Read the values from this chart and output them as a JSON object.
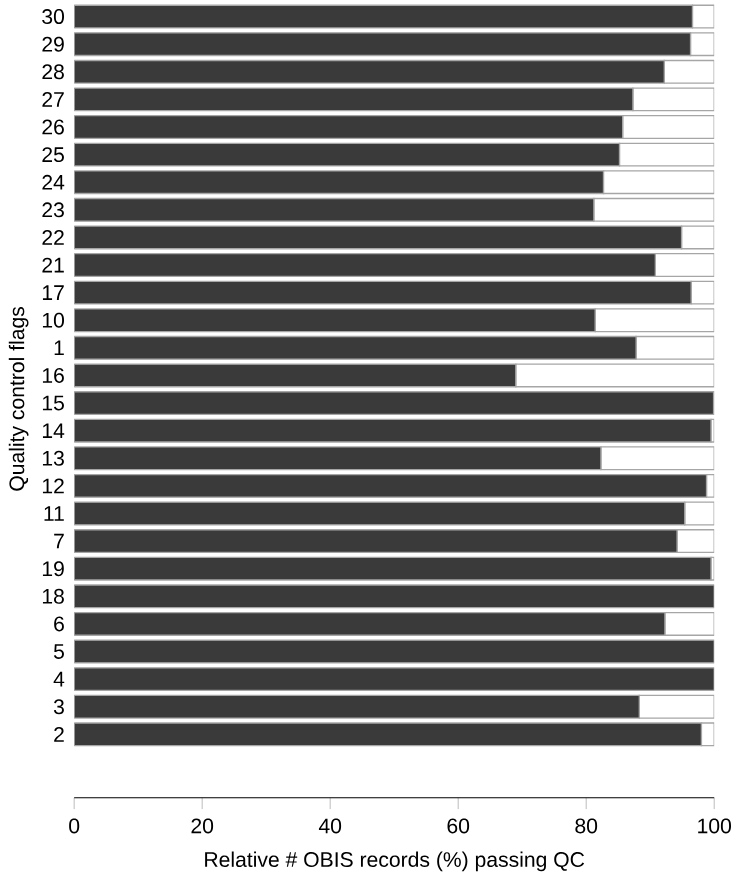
{
  "chart_data": {
    "type": "bar",
    "orientation": "horizontal",
    "stacked": true,
    "xlabel": "Relative # OBIS records (%) passing QC",
    "ylabel": "Quality control  flags",
    "categories": [
      "30",
      "29",
      "28",
      "27",
      "26",
      "25",
      "24",
      "23",
      "22",
      "21",
      "17",
      "10",
      "1",
      "16",
      "15",
      "14",
      "13",
      "12",
      "11",
      "7",
      "19",
      "18",
      "6",
      "5",
      "4",
      "3",
      "2"
    ],
    "series": [
      {
        "color": "#3a3a3a",
        "values": [
          96.6,
          96.3,
          92.2,
          87.3,
          85.7,
          85.2,
          82.7,
          81.2,
          94.9,
          90.8,
          96.4,
          81.4,
          87.8,
          69.0,
          99.9,
          99.5,
          82.3,
          98.8,
          95.4,
          94.2,
          99.5,
          100,
          92.3,
          100,
          100,
          88.3,
          98.0
        ]
      },
      {
        "color": "#ffffff",
        "values": [
          3.4,
          3.7,
          7.8,
          12.7,
          14.3,
          14.8,
          17.3,
          18.8,
          5.1,
          9.2,
          3.6,
          18.6,
          12.2,
          31.0,
          0.1,
          0.5,
          17.7,
          1.2,
          4.6,
          5.8,
          0.5,
          0,
          7.7,
          0,
          0,
          11.7,
          2.0
        ]
      }
    ],
    "xlim": [
      0,
      100
    ],
    "xticks": [
      0,
      20,
      40,
      60,
      80,
      100
    ],
    "grid": false
  }
}
